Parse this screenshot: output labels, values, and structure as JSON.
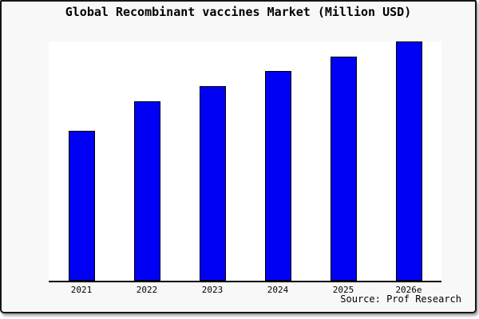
{
  "title": "Global Recombinant vaccines Market (Million USD)",
  "source": "Source: Prof Research",
  "colors": {
    "bar_fill": "#0000f5",
    "bar_border": "#000000",
    "card_background": "#f8f8f8",
    "plot_background": "#ffffff",
    "axis": "#000000",
    "frame_border": "#161616"
  },
  "chart_data": {
    "type": "bar",
    "categories": [
      "2021",
      "2022",
      "2023",
      "2024",
      "2025",
      "2026e"
    ],
    "values": [
      62.7,
      75.0,
      81.5,
      87.7,
      93.6,
      100.0
    ],
    "title": "Global Recombinant vaccines Market (Million USD)",
    "xlabel": "",
    "ylabel": "",
    "ylim": [
      0,
      100
    ],
    "legend": false,
    "grid": false,
    "note": "No y-axis scale or value labels are shown in the chart; values are bar heights relative to the tallest bar (2026e = 100)."
  }
}
